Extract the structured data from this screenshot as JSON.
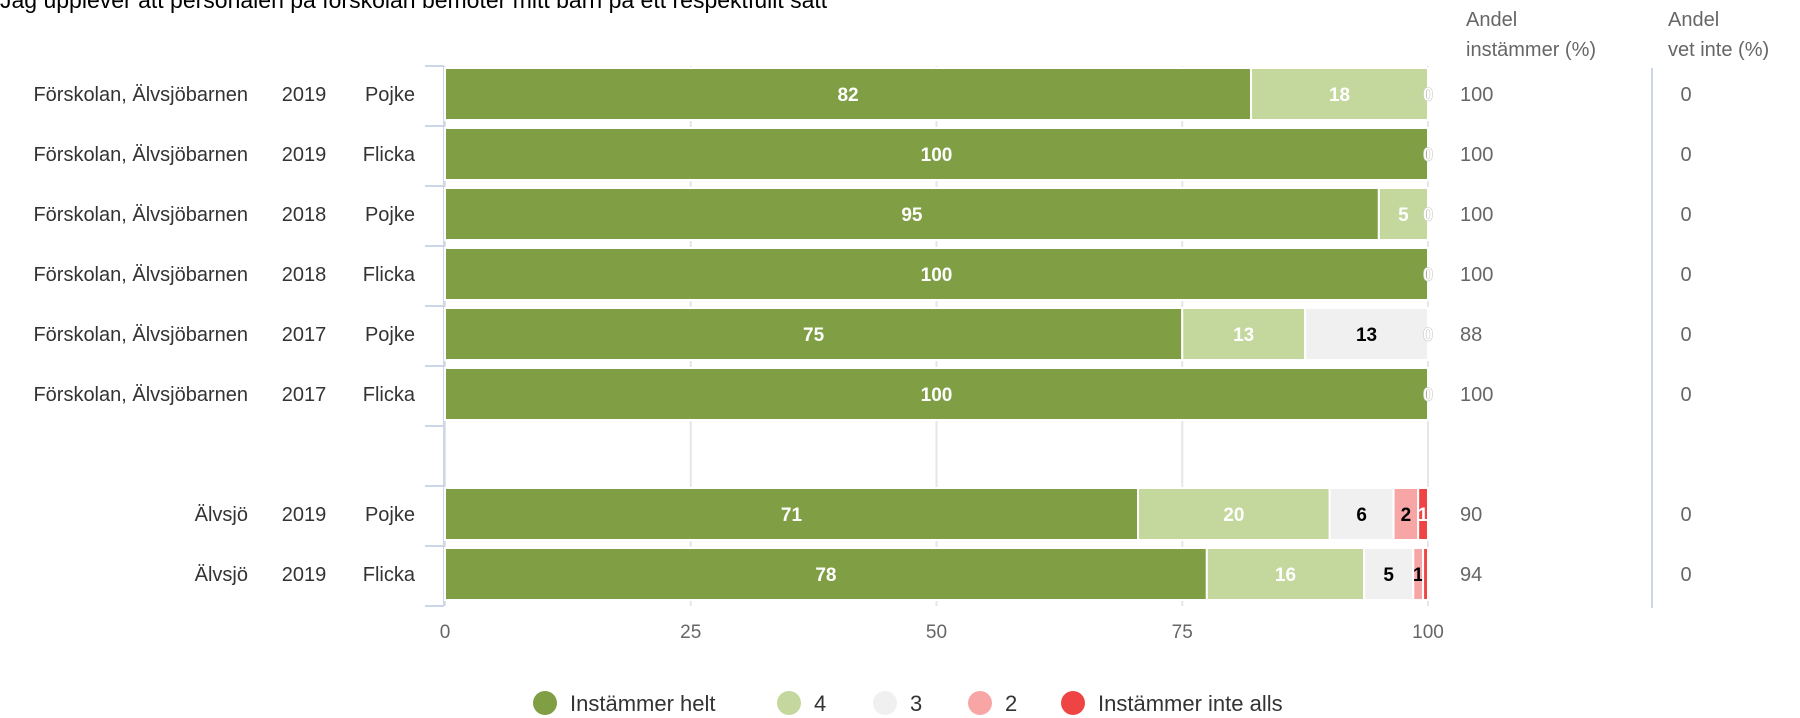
{
  "chart_data": {
    "type": "bar",
    "orientation": "horizontal",
    "stacked": true,
    "title": "Jag upplever att personalen på förskolan bemöter mitt barn på ett respektfullt sätt",
    "xlim": [
      0,
      100
    ],
    "x_ticks": [
      "0",
      "25",
      "50",
      "75",
      "100"
    ],
    "grid": true,
    "legend_position": "bottom",
    "rows": [
      {
        "unit": "Förskolan, Älvsjöbarnen",
        "year": "2019",
        "gender": "Pojke",
        "values": [
          82,
          18,
          0,
          0,
          0
        ],
        "labels": [
          "82",
          "18",
          "0",
          "",
          ""
        ],
        "andel_instammer": "100",
        "andel_vet_inte": "0"
      },
      {
        "unit": "Förskolan, Älvsjöbarnen",
        "year": "2019",
        "gender": "Flicka",
        "values": [
          100,
          0,
          0,
          0,
          0
        ],
        "labels": [
          "100",
          "",
          "0",
          "",
          ""
        ],
        "andel_instammer": "100",
        "andel_vet_inte": "0"
      },
      {
        "unit": "Förskolan, Älvsjöbarnen",
        "year": "2018",
        "gender": "Pojke",
        "values": [
          95,
          5,
          0,
          0,
          0
        ],
        "labels": [
          "95",
          "5",
          "0",
          "",
          ""
        ],
        "andel_instammer": "100",
        "andel_vet_inte": "0"
      },
      {
        "unit": "Förskolan, Älvsjöbarnen",
        "year": "2018",
        "gender": "Flicka",
        "values": [
          100,
          0,
          0,
          0,
          0
        ],
        "labels": [
          "100",
          "",
          "0",
          "",
          ""
        ],
        "andel_instammer": "100",
        "andel_vet_inte": "0"
      },
      {
        "unit": "Förskolan, Älvsjöbarnen",
        "year": "2017",
        "gender": "Pojke",
        "values": [
          75,
          12.5,
          12.5,
          0,
          0
        ],
        "labels": [
          "75",
          "13",
          "13",
          "0",
          ""
        ],
        "andel_instammer": "88",
        "andel_vet_inte": "0"
      },
      {
        "unit": "Förskolan, Älvsjöbarnen",
        "year": "2017",
        "gender": "Flicka",
        "values": [
          100,
          0,
          0,
          0,
          0
        ],
        "labels": [
          "100",
          "",
          "0",
          "",
          ""
        ],
        "andel_instammer": "100",
        "andel_vet_inte": "0"
      },
      null,
      {
        "unit": "Älvsjö",
        "year": "2019",
        "gender": "Pojke",
        "values": [
          70.5,
          19.5,
          6.5,
          2.5,
          1
        ],
        "labels": [
          "71",
          "20",
          "6",
          "2",
          "1"
        ],
        "andel_instammer": "90",
        "andel_vet_inte": "0"
      },
      {
        "unit": "Älvsjö",
        "year": "2019",
        "gender": "Flicka",
        "values": [
          77.5,
          16,
          5,
          1,
          0.5
        ],
        "labels": [
          "78",
          "16",
          "5",
          "1",
          ""
        ],
        "andel_instammer": "94",
        "andel_vet_inte": "0"
      }
    ],
    "series": [
      {
        "name": "Instämmer helt",
        "color": "#809e44"
      },
      {
        "name": "4",
        "color": "#c4d79c"
      },
      {
        "name": "3",
        "color": "#f0f0f0"
      },
      {
        "name": "2",
        "color": "#f8a5a5"
      },
      {
        "name": "Instämmer inte alls",
        "color": "#ef4444"
      }
    ],
    "label_colors": [
      "#ffffff",
      "#ffffff",
      "#000000",
      "#000000",
      "#ffffff"
    ],
    "column_headers": {
      "andel_instammer": [
        "Andel",
        "instämmer (%)"
      ],
      "andel_vet_inte": [
        "Andel",
        "vet inte (%)"
      ]
    }
  }
}
